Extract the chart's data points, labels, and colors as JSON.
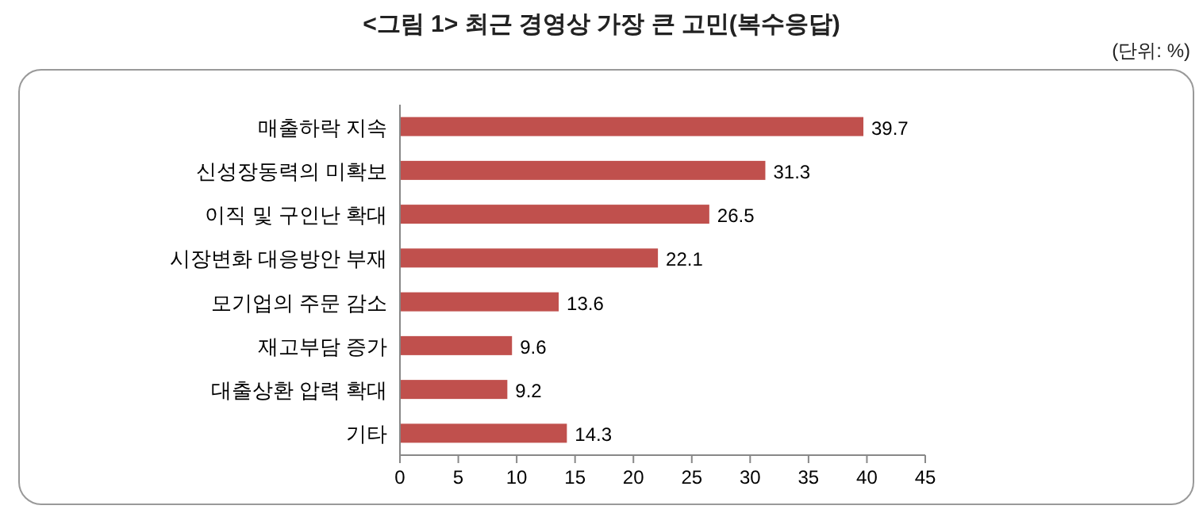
{
  "chart_data": {
    "type": "bar",
    "orientation": "horizontal",
    "title": "<그림 1> 최근 경영상 가장 큰 고민(복수응답)",
    "annotations": [
      "(단위: %)"
    ],
    "categories": [
      "매출하락 지속",
      "신성장동력의 미확보",
      "이직 및 구인난 확대",
      "시장변화 대응방안 부재",
      "모기업의 주문 감소",
      "재고부담 증가",
      "대출상환 압력 확대",
      "기타"
    ],
    "values": [
      39.7,
      31.3,
      26.5,
      22.1,
      13.6,
      9.6,
      9.2,
      14.3
    ],
    "color": "#c0504d",
    "xlim": [
      0,
      45
    ],
    "xticks": [
      0,
      5,
      10,
      15,
      20,
      25,
      30,
      35,
      40,
      45
    ],
    "data_labels": true
  }
}
